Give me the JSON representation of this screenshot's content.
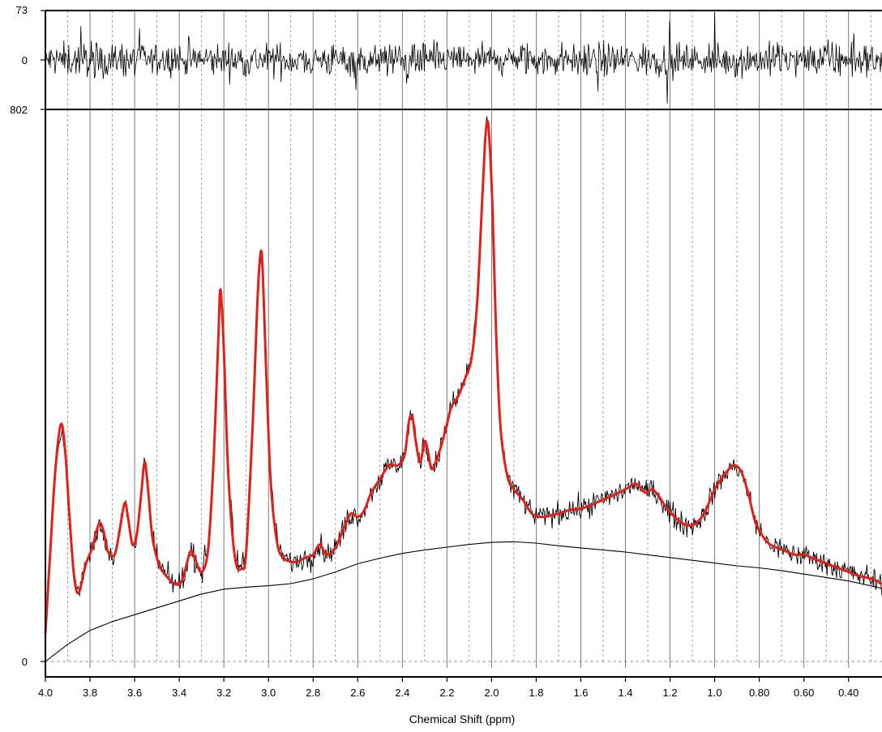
{
  "chart_data": {
    "type": "line",
    "xlabel": "Chemical Shift (ppm)",
    "x_reversed": true,
    "xlim": [
      4.0,
      0.25
    ],
    "x_ticks": [
      4.0,
      3.8,
      3.6,
      3.4,
      3.2,
      3.0,
      2.8,
      2.6,
      2.4,
      2.2,
      2.0,
      1.8,
      1.6,
      1.4,
      1.2,
      1.0,
      0.8,
      0.6,
      0.4
    ],
    "x_tick_labels": [
      "4.0",
      "3.8",
      "3.6",
      "3.4",
      "3.2",
      "3.0",
      "2.8",
      "2.6",
      "2.4",
      "2.2",
      "2.0",
      "1.8",
      "1.6",
      "1.4",
      "1.2",
      "1.0",
      "0.80",
      "0.60",
      "0.40"
    ],
    "grid": "solid-major-dashed-minor",
    "panels": [
      {
        "name": "residual",
        "ylim": [
          -73,
          73
        ],
        "y_tick_labels": [
          "73",
          "0"
        ],
        "series": [
          {
            "role": "residual",
            "color": "#000000"
          }
        ]
      },
      {
        "name": "spectrum",
        "ylim": [
          0,
          802
        ],
        "y_tick_labels": [
          "802",
          "0"
        ],
        "series": [
          {
            "role": "measured",
            "color": "#000000",
            "noise_amplitude": 16
          },
          {
            "role": "fit",
            "color": "#e0201b",
            "points": [
              [
                4.0,
                40
              ],
              [
                3.98,
                150
              ],
              [
                3.955,
                280
              ],
              [
                3.93,
                345
              ],
              [
                3.91,
                300
              ],
              [
                3.89,
                200
              ],
              [
                3.87,
                120
              ],
              [
                3.85,
                100
              ],
              [
                3.82,
                140
              ],
              [
                3.79,
                165
              ],
              [
                3.76,
                200
              ],
              [
                3.74,
                190
              ],
              [
                3.72,
                160
              ],
              [
                3.69,
                155
              ],
              [
                3.67,
                185
              ],
              [
                3.645,
                230
              ],
              [
                3.63,
                210
              ],
              [
                3.61,
                170
              ],
              [
                3.59,
                185
              ],
              [
                3.57,
                245
              ],
              [
                3.555,
                290
              ],
              [
                3.54,
                250
              ],
              [
                3.52,
                180
              ],
              [
                3.49,
                140
              ],
              [
                3.46,
                125
              ],
              [
                3.43,
                115
              ],
              [
                3.4,
                112
              ],
              [
                3.38,
                125
              ],
              [
                3.35,
                160
              ],
              [
                3.33,
                150
              ],
              [
                3.3,
                130
              ],
              [
                3.27,
                165
              ],
              [
                3.245,
                300
              ],
              [
                3.225,
                470
              ],
              [
                3.215,
                540
              ],
              [
                3.2,
                450
              ],
              [
                3.18,
                270
              ],
              [
                3.15,
                150
              ],
              [
                3.12,
                135
              ],
              [
                3.1,
                160
              ],
              [
                3.07,
                350
              ],
              [
                3.05,
                520
              ],
              [
                3.035,
                595
              ],
              [
                3.025,
                560
              ],
              [
                3.01,
                420
              ],
              [
                2.99,
                260
              ],
              [
                2.96,
                170
              ],
              [
                2.93,
                150
              ],
              [
                2.9,
                145
              ],
              [
                2.87,
                145
              ],
              [
                2.84,
                150
              ],
              [
                2.8,
                155
              ],
              [
                2.77,
                170
              ],
              [
                2.74,
                155
              ],
              [
                2.7,
                165
              ],
              [
                2.66,
                195
              ],
              [
                2.63,
                215
              ],
              [
                2.6,
                210
              ],
              [
                2.57,
                220
              ],
              [
                2.54,
                245
              ],
              [
                2.5,
                265
              ],
              [
                2.46,
                285
              ],
              [
                2.42,
                285
              ],
              [
                2.39,
                300
              ],
              [
                2.37,
                350
              ],
              [
                2.355,
                355
              ],
              [
                2.34,
                320
              ],
              [
                2.32,
                290
              ],
              [
                2.3,
                320
              ],
              [
                2.285,
                305
              ],
              [
                2.27,
                280
              ],
              [
                2.25,
                290
              ],
              [
                2.22,
                320
              ],
              [
                2.2,
                345
              ],
              [
                2.18,
                370
              ],
              [
                2.15,
                385
              ],
              [
                2.12,
                410
              ],
              [
                2.09,
                440
              ],
              [
                2.065,
                520
              ],
              [
                2.045,
                650
              ],
              [
                2.03,
                750
              ],
              [
                2.02,
                785
              ],
              [
                2.01,
                760
              ],
              [
                1.995,
                650
              ],
              [
                1.98,
                480
              ],
              [
                1.96,
                340
              ],
              [
                1.93,
                270
              ],
              [
                1.9,
                250
              ],
              [
                1.86,
                235
              ],
              [
                1.82,
                215
              ],
              [
                1.78,
                210
              ],
              [
                1.74,
                212
              ],
              [
                1.7,
                215
              ],
              [
                1.65,
                220
              ],
              [
                1.6,
                222
              ],
              [
                1.55,
                228
              ],
              [
                1.5,
                235
              ],
              [
                1.45,
                242
              ],
              [
                1.4,
                250
              ],
              [
                1.36,
                258
              ],
              [
                1.34,
                255
              ],
              [
                1.31,
                245
              ],
              [
                1.28,
                250
              ],
              [
                1.25,
                240
              ],
              [
                1.22,
                225
              ],
              [
                1.18,
                210
              ],
              [
                1.14,
                200
              ],
              [
                1.1,
                198
              ],
              [
                1.07,
                205
              ],
              [
                1.04,
                220
              ],
              [
                1.0,
                250
              ],
              [
                0.97,
                265
              ],
              [
                0.94,
                278
              ],
              [
                0.91,
                285
              ],
              [
                0.88,
                275
              ],
              [
                0.85,
                245
              ],
              [
                0.82,
                205
              ],
              [
                0.79,
                185
              ],
              [
                0.76,
                172
              ],
              [
                0.72,
                165
              ],
              [
                0.68,
                160
              ],
              [
                0.64,
                155
              ],
              [
                0.6,
                155
              ],
              [
                0.56,
                150
              ],
              [
                0.52,
                145
              ],
              [
                0.48,
                140
              ],
              [
                0.44,
                135
              ],
              [
                0.4,
                130
              ],
              [
                0.36,
                125
              ],
              [
                0.32,
                122
              ],
              [
                0.28,
                118
              ],
              [
                0.25,
                112
              ]
            ]
          },
          {
            "role": "baseline",
            "color": "#000000",
            "points": [
              [
                4.0,
                0
              ],
              [
                3.9,
                25
              ],
              [
                3.8,
                45
              ],
              [
                3.7,
                58
              ],
              [
                3.6,
                68
              ],
              [
                3.5,
                78
              ],
              [
                3.4,
                88
              ],
              [
                3.3,
                98
              ],
              [
                3.2,
                105
              ],
              [
                3.1,
                108
              ],
              [
                3.0,
                110
              ],
              [
                2.9,
                113
              ],
              [
                2.8,
                120
              ],
              [
                2.7,
                130
              ],
              [
                2.6,
                142
              ],
              [
                2.5,
                150
              ],
              [
                2.4,
                157
              ],
              [
                2.3,
                162
              ],
              [
                2.2,
                166
              ],
              [
                2.1,
                170
              ],
              [
                2.0,
                173
              ],
              [
                1.9,
                174
              ],
              [
                1.8,
                172
              ],
              [
                1.7,
                168
              ],
              [
                1.6,
                165
              ],
              [
                1.5,
                162
              ],
              [
                1.4,
                159
              ],
              [
                1.3,
                155
              ],
              [
                1.2,
                151
              ],
              [
                1.1,
                147
              ],
              [
                1.0,
                143
              ],
              [
                0.9,
                139
              ],
              [
                0.8,
                136
              ],
              [
                0.7,
                132
              ],
              [
                0.6,
                127
              ],
              [
                0.5,
                122
              ],
              [
                0.4,
                117
              ],
              [
                0.3,
                110
              ],
              [
                0.25,
                106
              ]
            ]
          }
        ]
      }
    ]
  }
}
